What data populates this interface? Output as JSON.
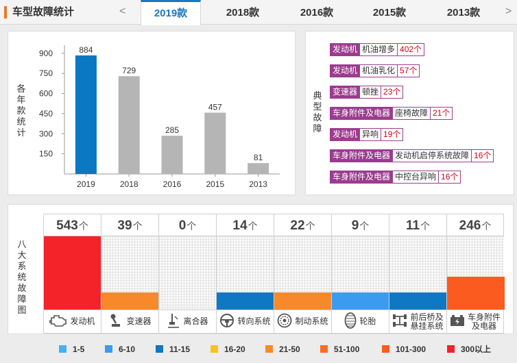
{
  "header": {
    "title": "车型故障统计",
    "prev_arrow": "<",
    "tabs": [
      {
        "label": "2019款",
        "active": true
      },
      {
        "label": "2018款",
        "active": false
      },
      {
        "label": "2016款",
        "active": false
      },
      {
        "label": "2015款",
        "active": false
      },
      {
        "label": "2013款",
        "active": false
      }
    ],
    "next_arrow": ">"
  },
  "year_chart_label": "各年款统计",
  "chart_data": {
    "type": "bar",
    "categories": [
      "2019",
      "2018",
      "2016",
      "2015",
      "2013"
    ],
    "values": [
      884,
      729,
      285,
      457,
      81
    ],
    "highlight_index": 0,
    "highlight_color": "#0a78c2",
    "bar_color": "#b5b5b5",
    "yticks": [
      150,
      300,
      450,
      600,
      750,
      900
    ],
    "ylim": [
      0,
      960
    ],
    "ylabel": "各年款统计"
  },
  "faults_label": "典型故障",
  "faults": [
    {
      "system": "发动机",
      "name": "机油增多",
      "count": "402个"
    },
    {
      "system": "发动机",
      "name": "机油乳化",
      "count": "57个"
    },
    {
      "system": "变速器",
      "name": "顿挫",
      "count": "23个"
    },
    {
      "system": "车身附件及电器",
      "name": "座椅故障",
      "count": "21个"
    },
    {
      "system": "发动机",
      "name": "异响",
      "count": "19个"
    },
    {
      "system": "车身附件及电器",
      "name": "发动机启停系统故障",
      "count": "16个"
    },
    {
      "system": "车身附件及电器",
      "name": "中控台异响",
      "count": "16个"
    }
  ],
  "systems_label": "八大系统故障图",
  "systems_max": 543,
  "systems": [
    {
      "count": "543",
      "unit": "个",
      "label": "发动机",
      "icon": "engine-icon",
      "color": "#f42229"
    },
    {
      "count": "39",
      "unit": "个",
      "label": "变速器",
      "icon": "gearshift-icon",
      "color": "#f7892a"
    },
    {
      "count": "0",
      "unit": "个",
      "label": "离合器",
      "icon": "clutch-pedal-icon",
      "color": "#cccccc"
    },
    {
      "count": "14",
      "unit": "个",
      "label": "转向系统",
      "icon": "steering-wheel-icon",
      "color": "#0f78c2"
    },
    {
      "count": "22",
      "unit": "个",
      "label": "制动系统",
      "icon": "brake-disc-icon",
      "color": "#f7892a"
    },
    {
      "count": "9",
      "unit": "个",
      "label": "轮胎",
      "icon": "tire-icon",
      "color": "#3a9bf0"
    },
    {
      "count": "11",
      "unit": "个",
      "label": "前后桥及\n悬挂系统",
      "icon": "axle-icon",
      "color": "#0f78c2"
    },
    {
      "count": "246",
      "unit": "个",
      "label": "车身附件\n及电器",
      "icon": "battery-icon",
      "color": "#fb5b1e"
    }
  ],
  "legend": [
    {
      "label": "1-5",
      "color": "#41b3f5"
    },
    {
      "label": "6-10",
      "color": "#3a9bf0"
    },
    {
      "label": "11-15",
      "color": "#0f78c2"
    },
    {
      "label": "16-20",
      "color": "#f9c31d"
    },
    {
      "label": "21-50",
      "color": "#f7892a"
    },
    {
      "label": "51-100",
      "color": "#f76d24"
    },
    {
      "label": "101-300",
      "color": "#fb5b1e"
    },
    {
      "label": "300以上",
      "color": "#f42229"
    }
  ]
}
